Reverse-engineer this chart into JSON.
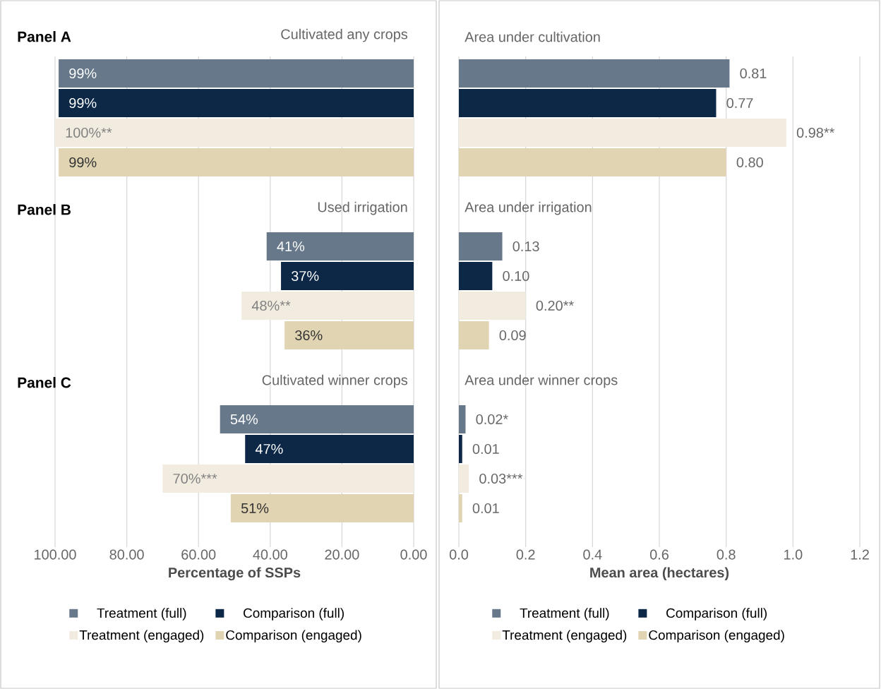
{
  "chart_data": [
    {
      "type": "bar",
      "orientation": "horizontal",
      "categories": [
        "Cultivated any crops",
        "Used irrigation",
        "Cultivated winner crops"
      ],
      "series": [
        {
          "name": "Treatment (full)",
          "color": "#67788a",
          "values": [
            99,
            41,
            54
          ],
          "value_labels": [
            "99%",
            "41%",
            "54%"
          ]
        },
        {
          "name": "Comparison (full)",
          "color": "#0d2847",
          "values": [
            99,
            37,
            47
          ],
          "value_labels": [
            "99%",
            "37%",
            "47%"
          ]
        },
        {
          "name": "Treatment (engaged)",
          "color": "#f2ece0",
          "values": [
            100,
            48,
            70
          ],
          "value_labels": [
            "100%**",
            "48%**",
            "70%***"
          ]
        },
        {
          "name": "Comparison (engaged)",
          "color": "#e0d4b2",
          "values": [
            99,
            36,
            51
          ],
          "value_labels": [
            "99%",
            "36%",
            "51%"
          ]
        }
      ],
      "xlim": [
        100,
        0
      ],
      "xticks": [
        {
          "value": 100,
          "label": "100.00"
        },
        {
          "value": 80,
          "label": "80.00"
        },
        {
          "value": 60,
          "label": "60.00"
        },
        {
          "value": 40,
          "label": "40.00"
        },
        {
          "value": 20,
          "label": "20.00"
        },
        {
          "value": 0,
          "label": "0.00"
        }
      ],
      "xlabel": "Percentage of SSPs",
      "grid": "x",
      "legend": "bottom",
      "annotations": [
        "Panel A",
        "Panel B",
        "Panel C"
      ]
    },
    {
      "type": "bar",
      "orientation": "horizontal",
      "categories": [
        "Area under cultivation",
        "Area under irrigation",
        "Area under winner crops"
      ],
      "series": [
        {
          "name": "Treatment (full)",
          "color": "#67788a",
          "values": [
            0.81,
            0.13,
            0.02
          ],
          "value_labels": [
            "0.81",
            "0.13",
            "0.02*"
          ]
        },
        {
          "name": "Comparison (full)",
          "color": "#0d2847",
          "values": [
            0.77,
            0.1,
            0.01
          ],
          "value_labels": [
            "0.77",
            "0.10",
            "0.01"
          ]
        },
        {
          "name": "Treatment (engaged)",
          "color": "#f2ece0",
          "values": [
            0.98,
            0.2,
            0.03
          ],
          "value_labels": [
            "0.98**",
            "0.20**",
            "0.03***"
          ]
        },
        {
          "name": "Comparison (engaged)",
          "color": "#e0d4b2",
          "values": [
            0.8,
            0.09,
            0.01
          ],
          "value_labels": [
            "0.80",
            "0.09",
            "0.01"
          ]
        }
      ],
      "xlim": [
        0,
        1.2
      ],
      "xticks": [
        {
          "value": 0,
          "label": "0.0"
        },
        0.2,
        0.4,
        0.6,
        0.8,
        {
          "value": 1.0,
          "label": "1.0"
        },
        1.2
      ],
      "xlabel": "Mean area (hectares)",
      "grid": "x",
      "legend": "bottom"
    }
  ]
}
